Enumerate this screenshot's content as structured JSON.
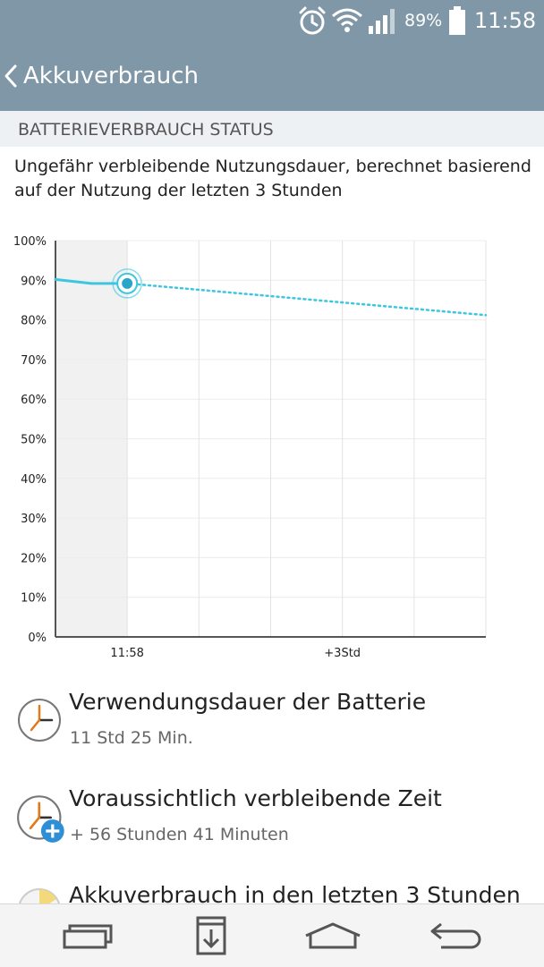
{
  "status_bar": {
    "battery_percent": "89%",
    "time": "11:58",
    "icons": [
      "alarm-icon",
      "wifi-icon",
      "signal-icon",
      "battery-icon"
    ]
  },
  "app_bar": {
    "title": "Akkuverbrauch",
    "back_icon": "chevron-left-icon"
  },
  "section": {
    "header": "BATTERIEVERBRAUCH STATUS",
    "description": "Ungefähr verbleibende Nutzungsdauer, berechnet basierend auf der Nutzung der letzten 3 Stunden"
  },
  "chart_data": {
    "type": "line",
    "y_ticks": [
      "100%",
      "90%",
      "80%",
      "70%",
      "60%",
      "50%",
      "40%",
      "30%",
      "20%",
      "10%",
      "0%"
    ],
    "ylim": [
      0,
      100
    ],
    "x_tick_labels": [
      "11:58",
      "+3Std"
    ],
    "x_hours_range": [
      -1,
      5
    ],
    "series": [
      {
        "style": "solid",
        "points": [
          [
            -1,
            90.2
          ],
          [
            -0.5,
            89.2
          ],
          [
            0,
            89.2
          ]
        ]
      },
      {
        "style": "dotted",
        "points": [
          [
            0,
            89.2
          ],
          [
            5,
            81.2
          ]
        ]
      }
    ],
    "current_marker": {
      "x": 0,
      "y": 89.2
    },
    "grid": true,
    "color": "#3ec6e0"
  },
  "items": [
    {
      "title": "Verwendungsdauer der Batterie",
      "subtitle": "11 Std 25 Min.",
      "icon": "clock-icon"
    },
    {
      "title": "Voraussichtlich verbleibende Zeit",
      "subtitle": "+ 56 Stunden 41 Minuten",
      "icon": "clock-plus-icon"
    },
    {
      "title": "Akkuverbrauch in den letzten 3 Stunden",
      "subtitle": "",
      "icon": "pie-chart-icon"
    }
  ],
  "nav_bar": {
    "buttons": [
      "recent-apps-icon",
      "sim-download-icon",
      "home-icon",
      "back-icon"
    ]
  }
}
